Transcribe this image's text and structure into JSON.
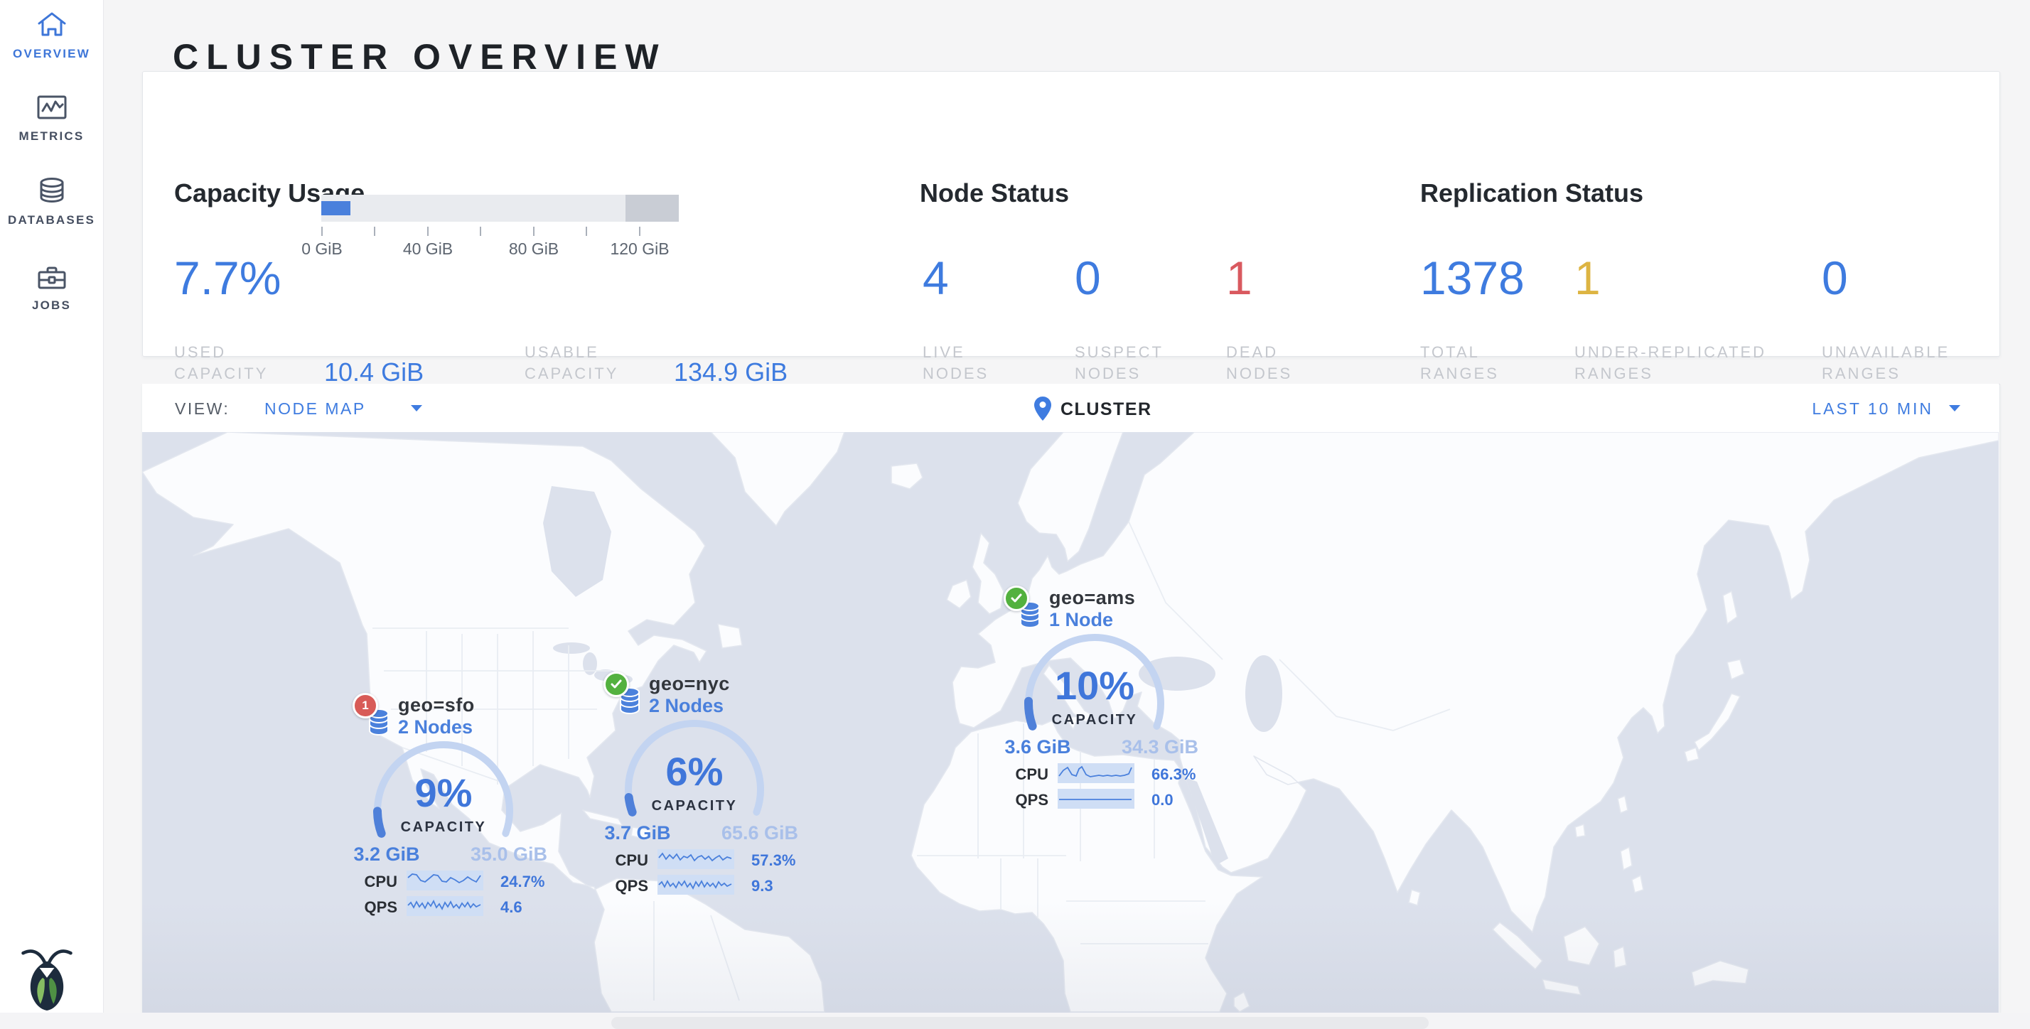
{
  "header": {
    "title": "CLUSTER OVERVIEW"
  },
  "sidebar": {
    "items": [
      {
        "label": "OVERVIEW",
        "icon": "home-icon",
        "active": true
      },
      {
        "label": "METRICS",
        "icon": "metrics-icon",
        "active": false
      },
      {
        "label": "DATABASES",
        "icon": "databases-icon",
        "active": false
      },
      {
        "label": "JOBS",
        "icon": "jobs-icon",
        "active": false
      }
    ],
    "logo_icon": "cockroachdb-logo"
  },
  "summary": {
    "capacity": {
      "title": "Capacity Usage",
      "percent": "7.7%",
      "tick_labels": [
        "0 GiB",
        "40 GiB",
        "80 GiB",
        "120 GiB"
      ],
      "stats": [
        {
          "label": "USED\nCAPACITY",
          "value": "10.4 GiB"
        },
        {
          "label": "USABLE\nCAPACITY",
          "value": "134.9 GiB"
        }
      ]
    },
    "nodes": {
      "title": "Node Status",
      "stats": [
        {
          "value": "4",
          "label": "LIVE\nNODES",
          "color": "blue"
        },
        {
          "value": "0",
          "label": "SUSPECT\nNODES",
          "color": "blue"
        },
        {
          "value": "1",
          "label": "DEAD\nNODES",
          "color": "red"
        }
      ]
    },
    "replication": {
      "title": "Replication Status",
      "stats": [
        {
          "value": "1378",
          "label": "TOTAL\nRANGES",
          "color": "blue"
        },
        {
          "value": "1",
          "label": "UNDER-REPLICATED\nRANGES",
          "color": "yellow"
        },
        {
          "value": "0",
          "label": "UNAVAILABLE\nRANGES",
          "color": "blue"
        }
      ]
    }
  },
  "toolbar": {
    "view_label": "VIEW:",
    "view_value": "NODE MAP",
    "breadcrumb": "CLUSTER",
    "breadcrumb_icon": "cluster-pin-icon",
    "time_range": "LAST 10 MIN"
  },
  "map": {
    "gauge_caption": "CAPACITY",
    "cpu_label": "CPU",
    "qps_label": "QPS",
    "localities": [
      {
        "name": "geo=sfo",
        "nodes_label": "2 Nodes",
        "status": "has-dead-node",
        "badge": "1",
        "capacity_percent": 9,
        "capacity_percent_label": "9%",
        "used": "3.2 GiB",
        "capacity": "35.0 GiB",
        "cpu": "24.7%",
        "qps": "4.6"
      },
      {
        "name": "geo=nyc",
        "nodes_label": "2 Nodes",
        "status": "healthy",
        "capacity_percent": 6,
        "capacity_percent_label": "6%",
        "used": "3.7 GiB",
        "capacity": "65.6 GiB",
        "cpu": "57.3%",
        "qps": "9.3"
      },
      {
        "name": "geo=ams",
        "nodes_label": "1 Node",
        "status": "healthy",
        "capacity_percent": 10,
        "capacity_percent_label": "10%",
        "used": "3.6 GiB",
        "capacity": "34.3 GiB",
        "cpu": "66.3%",
        "qps": "0.0"
      }
    ]
  },
  "colors": {
    "accent_blue": "#3e7bdf",
    "status_red": "#d9595f",
    "status_yellow": "#ddb442",
    "status_green": "#53b13f",
    "ocean": "#dce1ec"
  }
}
